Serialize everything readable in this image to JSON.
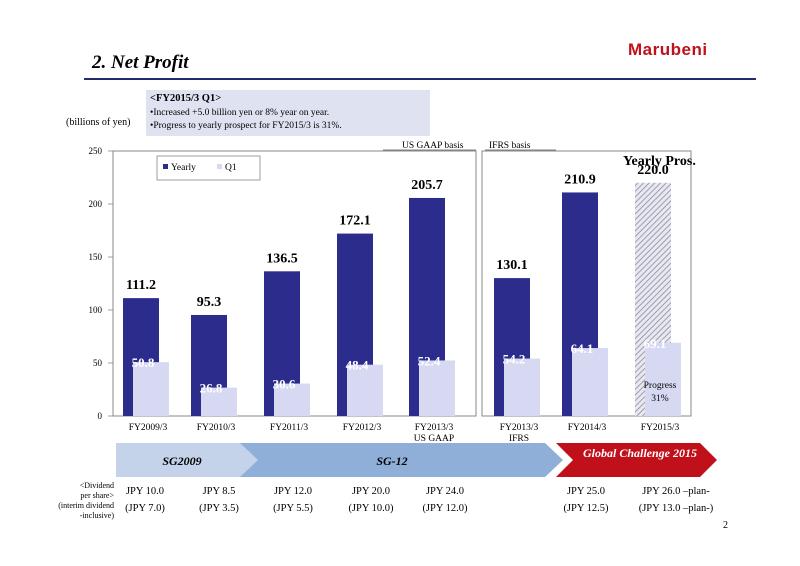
{
  "header": {
    "title": "2.  Net Profit",
    "logo_text": "Marubeni",
    "unit": "(billions of yen)",
    "page_number": "2"
  },
  "note": {
    "heading": "<FY2015/3 Q1>",
    "lines": [
      "•Increased  +5.0 billion yen or 8% year on year.",
      "•Progress to yearly prospect for FY2015/3 is 31%."
    ]
  },
  "basis_labels": {
    "us_gaap": "US GAAP basis",
    "ifrs": "IFRS basis"
  },
  "chart_data": {
    "type": "bar",
    "categories": [
      "FY2009/3",
      "FY2010/3",
      "FY2011/3",
      "FY2012/3",
      "FY2013/3",
      "FY2013/3",
      "FY2014/3",
      "FY2015/3"
    ],
    "category_sublabels": [
      "",
      "",
      "",
      "",
      "US GAAP",
      "IFRS",
      "",
      ""
    ],
    "series": [
      {
        "name": "Yearly",
        "color": "#2b2c8c",
        "values": [
          111.2,
          95.3,
          136.5,
          172.1,
          205.7,
          130.1,
          210.9,
          220.0
        ]
      },
      {
        "name": "Q1",
        "color": "#d7d9f3",
        "values": [
          50.8,
          26.8,
          30.6,
          48.4,
          52.4,
          54.2,
          64.1,
          69.1
        ]
      }
    ],
    "yearly_labels": [
      "111.2",
      "95.3",
      "136.5",
      "172.1",
      "205.7",
      "130.1",
      "210.9",
      "220.0"
    ],
    "q1_labels": [
      "50.8",
      "26.8",
      "30.6",
      "48.4",
      "52.4",
      "54.2",
      "64.1",
      "69.1"
    ],
    "forecast_caption": "Yearly Pros.",
    "progress_caption": [
      "Progress",
      "31%"
    ],
    "ylim": [
      0,
      250
    ],
    "yticks": [
      "0",
      "50",
      "100",
      "150",
      "200",
      "250"
    ],
    "legend": {
      "placement": "top-left",
      "entries": [
        "Yearly",
        "Q1"
      ]
    }
  },
  "plans": [
    {
      "label": "SG2009",
      "color": "#c5d3ea"
    },
    {
      "label": "SG-12",
      "color": "#8fafd9"
    },
    {
      "label": "Global   Challenge 2015",
      "color": "#c0101a"
    }
  ],
  "dividends": {
    "label": [
      "<Dividend",
      "per share>",
      "(interim dividend",
      "-inclusive)"
    ],
    "columns": [
      {
        "total": "JPY 10.0",
        "interim": "(JPY 7.0)"
      },
      {
        "total": "JPY 8.5",
        "interim": "(JPY 3.5)"
      },
      {
        "total": "JPY 12.0",
        "interim": "(JPY 5.5)"
      },
      {
        "total": "JPY 20.0",
        "interim": "(JPY 10.0)"
      },
      {
        "total": "JPY 24.0",
        "interim": "(JPY 12.0)"
      },
      {
        "total": "JPY 25.0",
        "interim": "(JPY 12.5)"
      },
      {
        "total": "JPY 26.0 –plan-",
        "interim": "(JPY 13.0 –plan-)"
      }
    ]
  }
}
